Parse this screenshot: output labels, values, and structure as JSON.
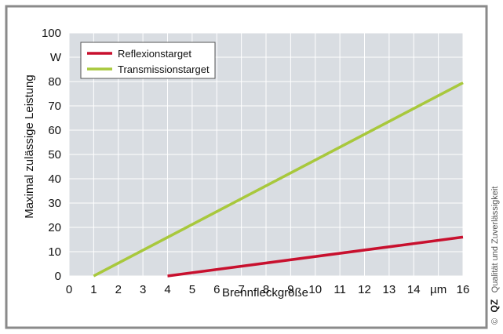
{
  "chart_data": {
    "type": "line",
    "xlabel": "Brennfleckgröße",
    "ylabel": "Maximal zulässige Leistung",
    "x_unit": "µm",
    "y_unit": "W",
    "xlim": [
      0,
      16
    ],
    "ylim": [
      0,
      100
    ],
    "x_ticks": [
      "0",
      "1",
      "2",
      "3",
      "4",
      "5",
      "6",
      "7",
      "8",
      "9",
      "10",
      "11",
      "12",
      "13",
      "14",
      "µm",
      "16"
    ],
    "x_tick_values": [
      0,
      1,
      2,
      3,
      4,
      5,
      6,
      7,
      8,
      9,
      10,
      11,
      12,
      13,
      14,
      15,
      16
    ],
    "y_ticks": [
      "0",
      "10",
      "20",
      "30",
      "40",
      "50",
      "60",
      "70",
      "80",
      "W",
      "100"
    ],
    "y_tick_values": [
      0,
      10,
      20,
      30,
      40,
      50,
      60,
      70,
      80,
      90,
      100
    ],
    "grid": true,
    "legend_position": "top-left",
    "series": [
      {
        "name": "Reflexionstarget",
        "color": "#c8102e",
        "x": [
          4,
          16
        ],
        "y": [
          0,
          16
        ]
      },
      {
        "name": "Transmissionstarget",
        "color": "#a8c83c",
        "x": [
          1,
          16
        ],
        "y": [
          0,
          79.5
        ]
      }
    ]
  },
  "credit": {
    "copyright": "©",
    "brand": "QZ",
    "text": "Qualität und Zuverlässigkeit"
  },
  "colors": {
    "frame": "#8a8a8a",
    "plot_background": "#d9dde2",
    "grid": "#ffffff"
  }
}
